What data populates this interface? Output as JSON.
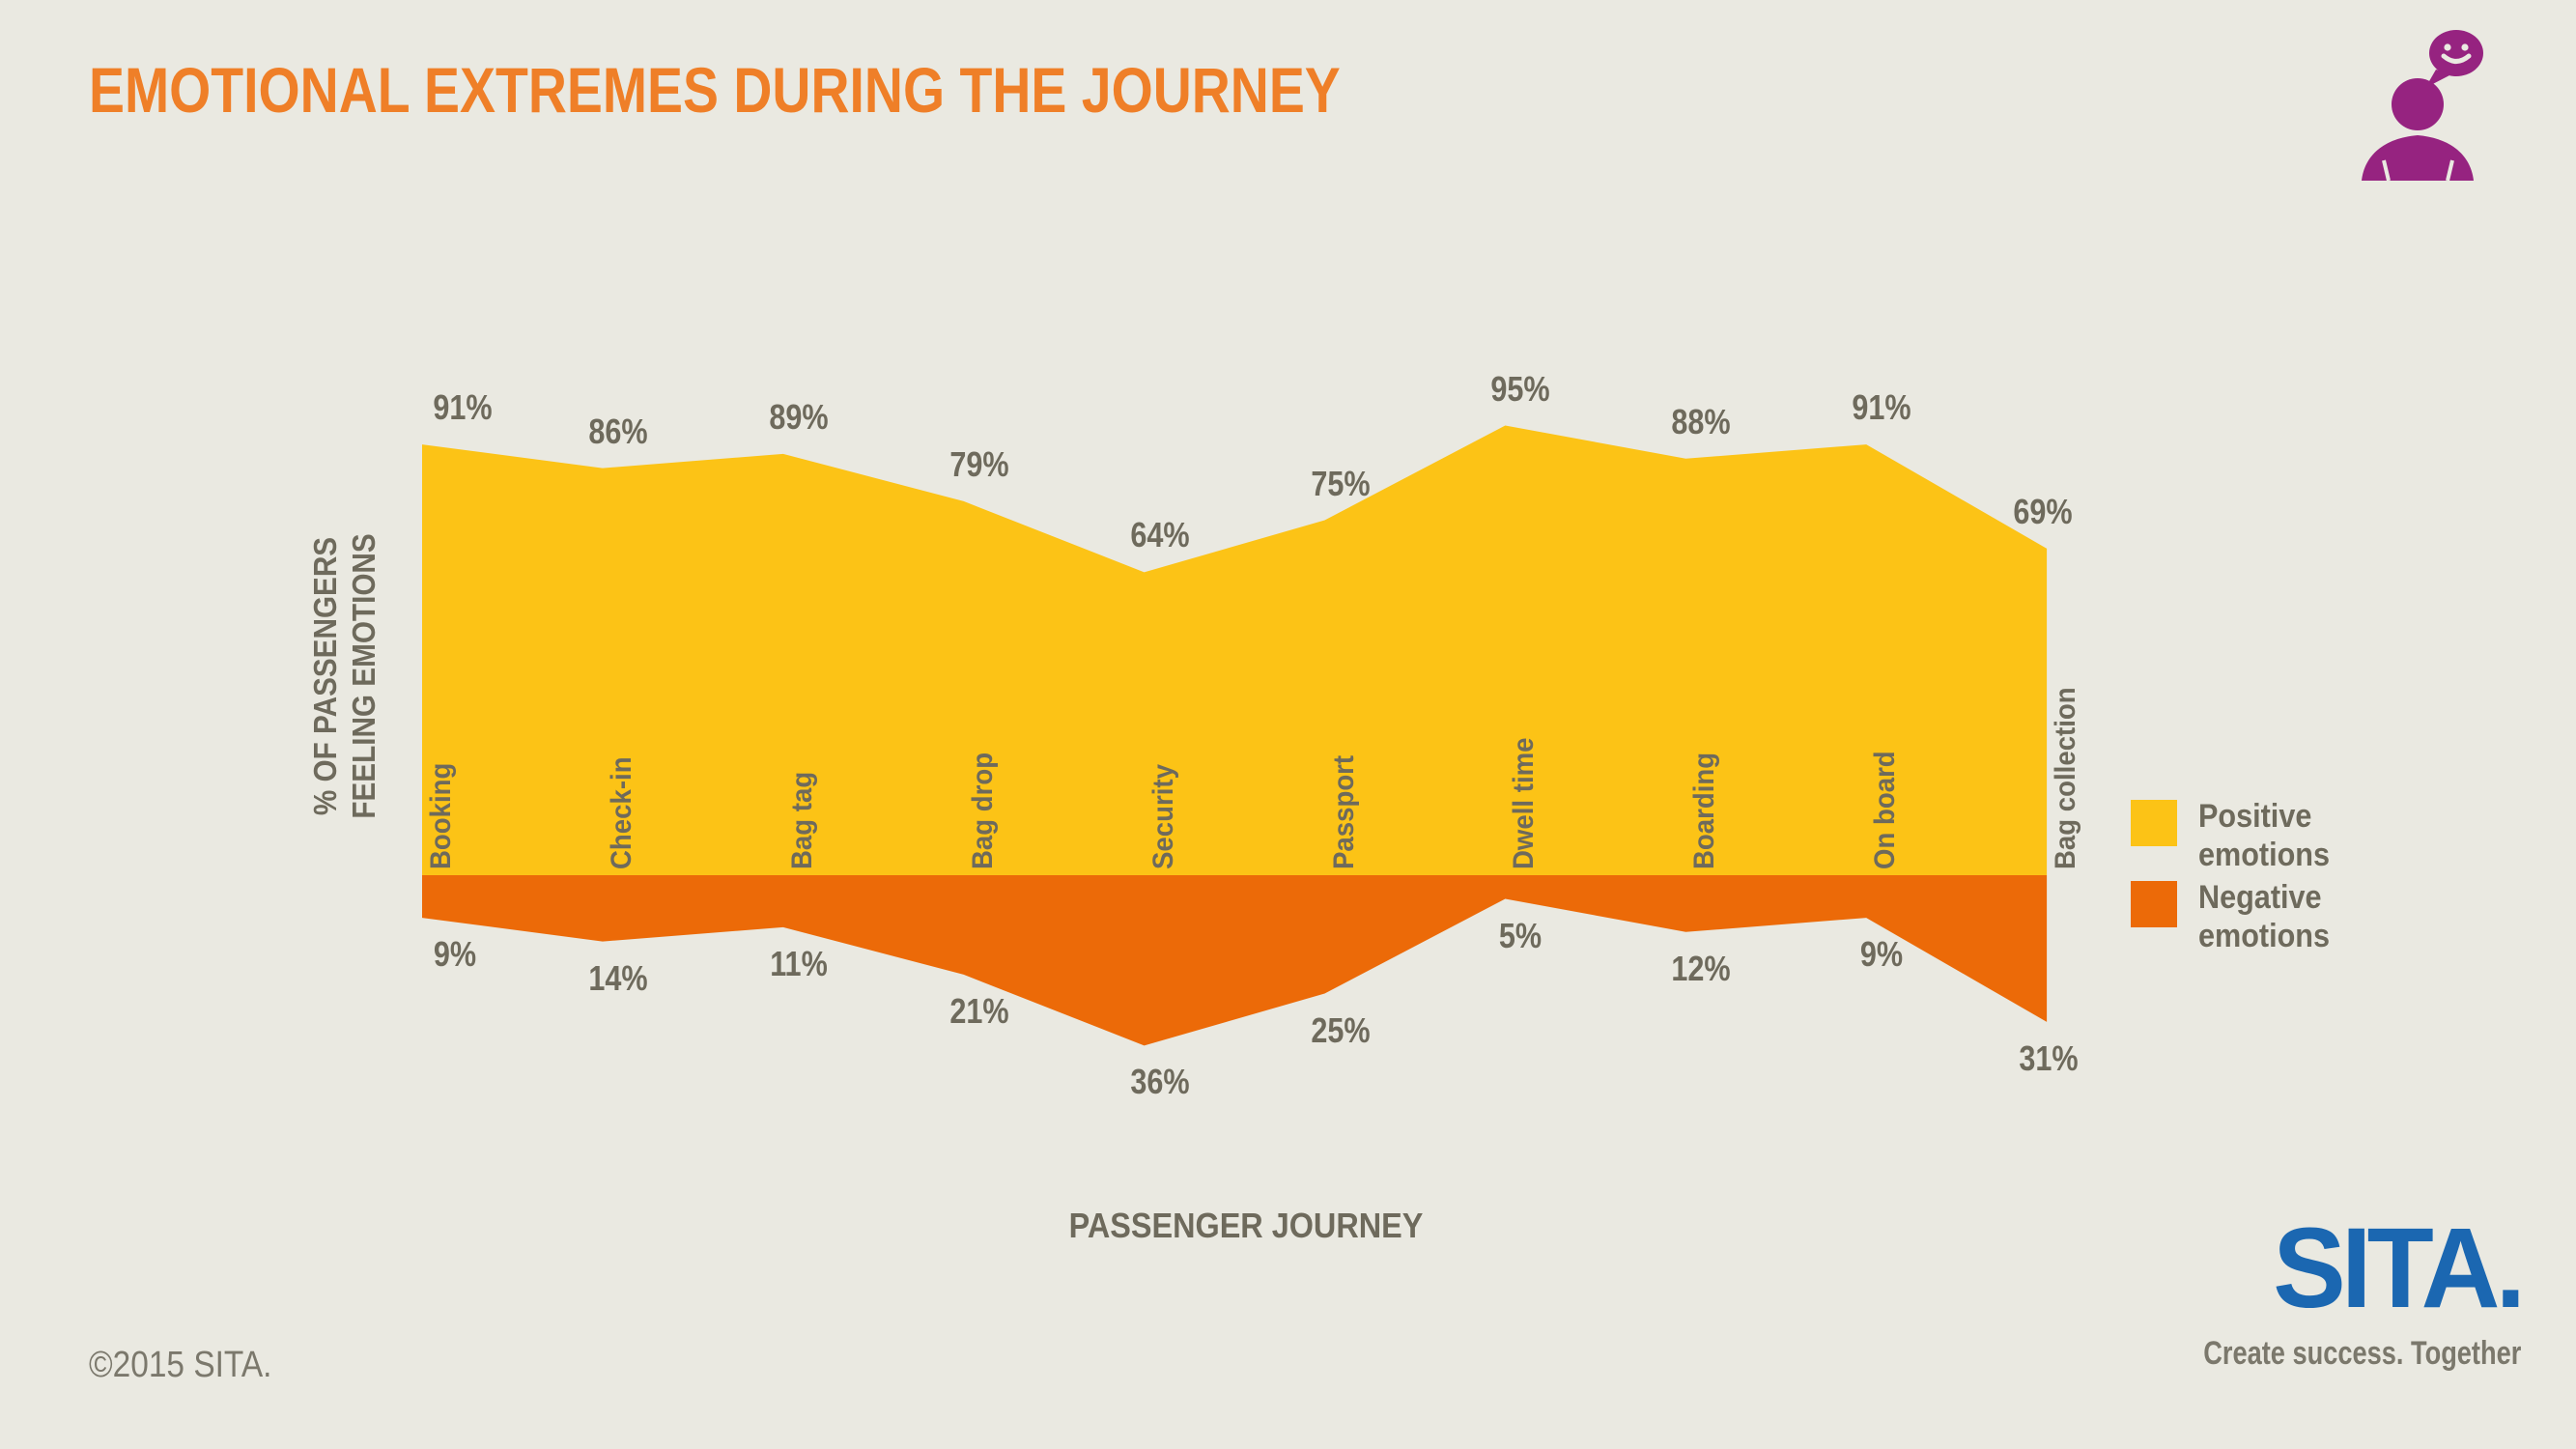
{
  "page": {
    "title": "EMOTIONAL EXTREMES DURING THE JOURNEY",
    "copyright": "©2015 SITA.",
    "brand": {
      "name": "SITA.",
      "tagline": "Create success. Together"
    }
  },
  "colors": {
    "background": "#eae9e1",
    "positive_yellow": "#fcc316",
    "negative_orange": "#ec6a08",
    "title_orange": "#ef7f28",
    "text_gray": "#6e6a5c",
    "footer_gray": "#7b786c",
    "sita_blue": "#1b67b1",
    "icon_purple": "#962380"
  },
  "chart_data": {
    "type": "area",
    "title": "EMOTIONAL EXTREMES DURING THE JOURNEY",
    "xlabel": "PASSENGER JOURNEY",
    "ylabel": "% OF PASSENGERS FEELING EMOTIONS",
    "ylabel_lines": [
      "% OF PASSENGERS",
      "FEELING EMOTIONS"
    ],
    "categories": [
      "Booking",
      "Check-in",
      "Bag tag",
      "Bag drop",
      "Security",
      "Passport",
      "Dwell time",
      "Boarding",
      "On board",
      "Bag collection"
    ],
    "series": [
      {
        "name": "Positive emotions",
        "color": "#fcc316",
        "direction": "up",
        "values": [
          91,
          86,
          89,
          79,
          64,
          75,
          95,
          88,
          91,
          69
        ]
      },
      {
        "name": "Negative emotions",
        "color": "#ec6a08",
        "direction": "down",
        "values": [
          9,
          14,
          11,
          21,
          36,
          25,
          5,
          12,
          9,
          31
        ]
      }
    ],
    "value_suffix": "%",
    "ylim": [
      0,
      100
    ],
    "grid": false,
    "legend_position": "right",
    "note": "Mirrored area chart: positive % plotted upward and negative % downward from a shared baseline"
  },
  "legend": {
    "items": [
      {
        "label": "Positive emotions",
        "color": "#fcc316"
      },
      {
        "label": "Negative emotions",
        "color": "#ec6a08"
      }
    ]
  }
}
